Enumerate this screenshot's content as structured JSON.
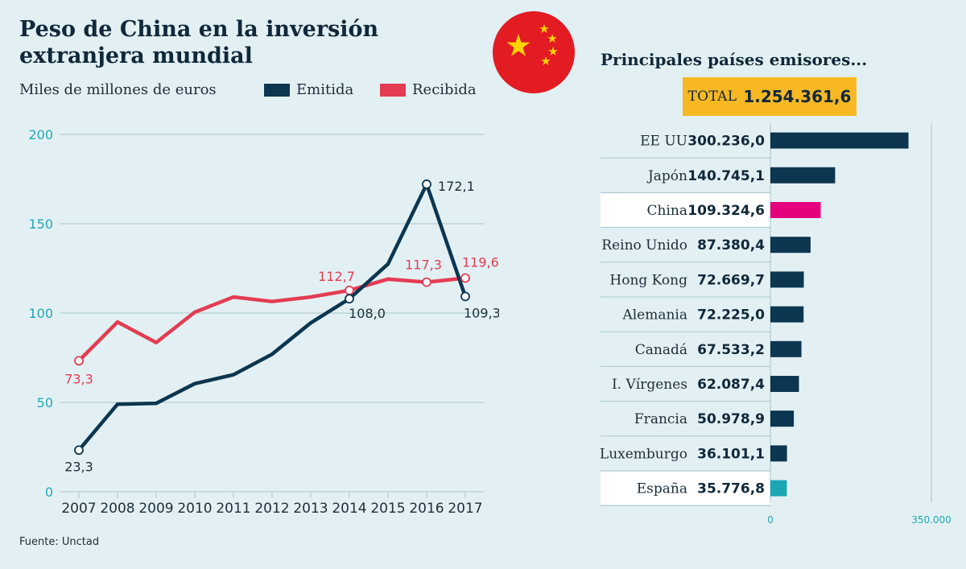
{
  "title": "Peso de China en la inversión extranjera mundial",
  "subtitle": "Miles de millones de euros",
  "source": "Fuente: Unctad",
  "colors": {
    "emitida": "#0c3650",
    "recibida": "#e33c53",
    "axis_ticks": "#22a7b5",
    "grid": "#a6c6cc",
    "china_bar": "#e5007e",
    "spain_bar": "#1aa6b3",
    "total_bg": "#f7b823"
  },
  "chart_data": [
    {
      "type": "line",
      "title": "Peso de China en la inversión extranjera mundial",
      "ylabel": "Miles de millones de euros",
      "xlabel": "",
      "ylim": [
        0,
        200
      ],
      "yticks": [
        0,
        50,
        100,
        150,
        200
      ],
      "x": [
        "2007",
        "2008",
        "2009",
        "2010",
        "2011",
        "2012",
        "2013",
        "2014",
        "2015",
        "2016",
        "2017"
      ],
      "series": [
        {
          "name": "Emitida",
          "values": [
            23.3,
            49,
            49.5,
            60.5,
            65.5,
            77,
            94.5,
            108.0,
            127.5,
            172.1,
            109.3
          ],
          "labels": [
            {
              "index": 0,
              "text": "23,3"
            },
            {
              "index": 7,
              "text": "108,0"
            },
            {
              "index": 9,
              "text": "172,1"
            },
            {
              "index": 10,
              "text": "109,3"
            }
          ]
        },
        {
          "name": "Recibida",
          "values": [
            73.3,
            95,
            83.5,
            100.5,
            109,
            106.5,
            109,
            112.7,
            119,
            117.3,
            119.6
          ],
          "labels": [
            {
              "index": 0,
              "text": "73,3"
            },
            {
              "index": 7,
              "text": "112,7"
            },
            {
              "index": 9,
              "text": "117,3"
            },
            {
              "index": 10,
              "text": "119,6"
            }
          ]
        }
      ]
    },
    {
      "type": "bar",
      "orientation": "horizontal",
      "title": "Principales países emisores...",
      "total_label": "TOTAL",
      "total_value": "1.254.361,6",
      "xlim": [
        0,
        350000
      ],
      "xtick_labels": [
        "0",
        "350.000"
      ],
      "categories": [
        "EE UU",
        "Japón",
        "China",
        "Reino Unido",
        "Hong Kong",
        "Alemania",
        "Canadá",
        "I. Vírgenes",
        "Francia",
        "Luxemburgo",
        "España"
      ],
      "values": [
        300236.0,
        140745.1,
        109324.6,
        87380.4,
        72669.7,
        72225.0,
        67533.2,
        62087.4,
        50978.9,
        36101.1,
        35776.8
      ],
      "value_labels": [
        "300.236,0",
        "140.745,1",
        "109.324,6",
        "87.380,4",
        "72.669,7",
        "72.225,0",
        "67.533,2",
        "62.087,4",
        "50.978,9",
        "36.101,1",
        "35.776,8"
      ],
      "highlight": {
        "China": "china_bar",
        "España": "spain_bar"
      }
    }
  ]
}
